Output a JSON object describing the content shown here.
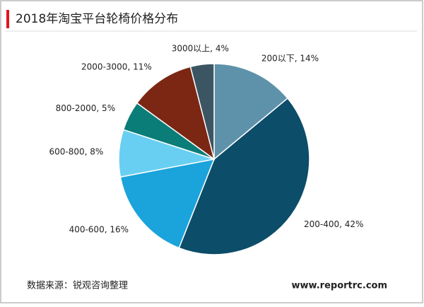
{
  "chart_data": {
    "type": "pie",
    "title": "2018年淘宝平台轮椅价格分布",
    "labels": [
      "200以下, 14%",
      "200-400, 42%",
      "400-600, 16%",
      "600-800, 8%",
      "800-2000, 5%",
      "2000-3000, 11%",
      "3000以上, 4%"
    ],
    "values": [
      14,
      42,
      16,
      8,
      5,
      11,
      4
    ],
    "colors": [
      "#5e92aa",
      "#0c4d69",
      "#1ba3db",
      "#69cff2",
      "#0b7d78",
      "#7b2714",
      "#3b5563"
    ],
    "source": "数据来源：锐观咨询整理",
    "website": "www.reportrc.com"
  }
}
